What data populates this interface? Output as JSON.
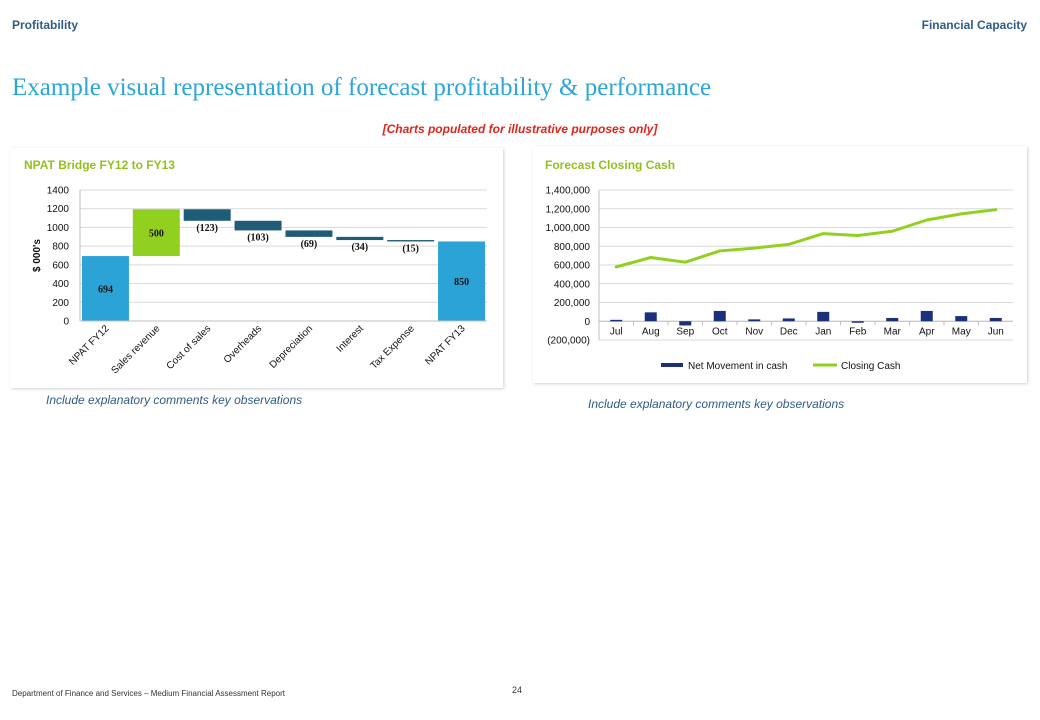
{
  "header": {
    "left": "Profitability",
    "right": "Financial Capacity"
  },
  "title": "Example visual representation of forecast profitability & performance",
  "disclaimer": "[Charts populated for illustrative purposes only]",
  "comments": {
    "left": "Include explanatory comments key observations",
    "right": "Include explanatory comments key observations"
  },
  "footer": {
    "left": "Department of Finance and Services – Medium Financial Assessment Report",
    "page": "24"
  },
  "chart_data": [
    {
      "type": "bar",
      "subtype": "waterfall",
      "title": "NPAT Bridge FY12 to FY13",
      "xlabel": "",
      "ylabel": "$ 000's",
      "ylim": [
        0,
        1400
      ],
      "yticks": [
        "0",
        "200",
        "400",
        "600",
        "800",
        "1000",
        "1200",
        "1400"
      ],
      "grid": true,
      "categories": [
        "NPAT FY12",
        "Sales revenue",
        "Cost of sales",
        "Overheads",
        "Depreciation",
        "Interest",
        "Tax Expense",
        "NPAT FY13"
      ],
      "values": [
        694,
        500,
        -123,
        -103,
        -69,
        -34,
        -15,
        850
      ],
      "data_labels": [
        "694",
        "500",
        "(123)",
        "(103)",
        "(69)",
        "(34)",
        "(15)",
        "850"
      ],
      "bar_kinds": [
        "total",
        "increase",
        "decrease",
        "decrease",
        "decrease",
        "decrease",
        "decrease",
        "total"
      ],
      "colors": {
        "total": "#2ba3d6",
        "increase": "#92d020",
        "decrease": "#1f5c77"
      }
    },
    {
      "type": "line",
      "title": "Forecast Closing Cash",
      "xlabel": "",
      "ylabel": "",
      "ylim": [
        -200000,
        1400000
      ],
      "yticks": [
        "(200,000)",
        "0",
        "200,000",
        "400,000",
        "600,000",
        "800,000",
        "1,000,000",
        "1,200,000",
        "1,400,000"
      ],
      "grid": true,
      "legend": "bottom",
      "categories": [
        "Jul",
        "Aug",
        "Sep",
        "Oct",
        "Nov",
        "Dec",
        "Jan",
        "Feb",
        "Mar",
        "Apr",
        "May",
        "Jun"
      ],
      "series": [
        {
          "name": "Net Movement in cash",
          "type": "bar",
          "color": "#1b2f7a",
          "values": [
            15000,
            95000,
            -45000,
            110000,
            20000,
            30000,
            100000,
            -10000,
            35000,
            110000,
            55000,
            35000
          ]
        },
        {
          "name": "Closing Cash",
          "type": "line",
          "color": "#92d020",
          "values": [
            580000,
            680000,
            630000,
            750000,
            780000,
            820000,
            935000,
            915000,
            960000,
            1080000,
            1145000,
            1190000
          ]
        }
      ]
    }
  ]
}
